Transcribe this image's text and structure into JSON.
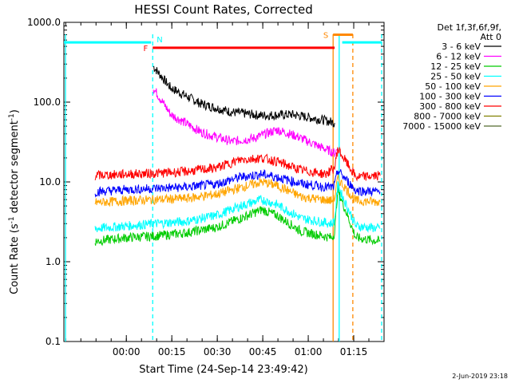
{
  "chart_data": {
    "type": "line",
    "title": "HESSI Count Rates, Corrected",
    "xlabel": "Start Time (24-Sep-14 23:49:42)",
    "ylabel_main": "Count Rate (s",
    "ylabel_sup1": "-1",
    "ylabel_mid": " detector segment",
    "ylabel_sup2": "-1",
    "ylabel_end": ")",
    "y_scale": "log",
    "ylim": [
      0.1,
      1000
    ],
    "xlim_minutes_from_start": [
      -10.3,
      95.3
    ],
    "x_ticks": [
      {
        "label": "00:00",
        "t": 10.3
      },
      {
        "label": "00:15",
        "t": 25.3
      },
      {
        "label": "00:30",
        "t": 40.3
      },
      {
        "label": "00:45",
        "t": 55.3
      },
      {
        "label": "01:00",
        "t": 70.3
      },
      {
        "label": "01:15",
        "t": 85.3
      }
    ],
    "y_ticks": [
      {
        "label": "1000.0",
        "v": 1000
      },
      {
        "label": "100.0",
        "v": 100
      },
      {
        "label": "10.0",
        "v": 10
      },
      {
        "label": "1.0",
        "v": 1
      },
      {
        "label": "0.1",
        "v": 0.1
      }
    ],
    "legend": {
      "header": [
        "Det 1f,3f,6f,9f,",
        "Att 0"
      ],
      "placement": "right"
    },
    "series": [
      {
        "name": "3 - 6 keV",
        "color": "#000000",
        "points": [
          [
            19.2,
            280
          ],
          [
            25,
            150
          ],
          [
            35,
            95
          ],
          [
            45,
            75
          ],
          [
            55,
            68
          ],
          [
            65,
            70
          ],
          [
            75,
            60
          ],
          [
            79,
            55
          ]
        ]
      },
      {
        "name": "6 - 12 keV",
        "color": "#ff00ff",
        "points": [
          [
            19.2,
            150
          ],
          [
            25,
            70
          ],
          [
            35,
            42
          ],
          [
            45,
            32
          ],
          [
            52,
            35
          ],
          [
            60,
            45
          ],
          [
            66,
            38
          ],
          [
            72,
            30
          ],
          [
            79,
            23
          ],
          [
            80,
            26
          ]
        ]
      },
      {
        "name": "12 - 25 keV",
        "color": "#00cc00",
        "points": [
          [
            0,
            1.8
          ],
          [
            10,
            2.0
          ],
          [
            20,
            2.1
          ],
          [
            30,
            2.3
          ],
          [
            40,
            2.7
          ],
          [
            48,
            3.5
          ],
          [
            55,
            4.5
          ],
          [
            60,
            3.8
          ],
          [
            68,
            2.4
          ],
          [
            78,
            2.0
          ],
          [
            79,
            2.3
          ],
          [
            80,
            8
          ],
          [
            86,
            2.0
          ],
          [
            94,
            1.8
          ]
        ]
      },
      {
        "name": "25 - 50 keV",
        "color": "#00ffff",
        "points": [
          [
            0,
            2.6
          ],
          [
            10,
            2.8
          ],
          [
            20,
            3.0
          ],
          [
            30,
            3.2
          ],
          [
            40,
            3.8
          ],
          [
            48,
            5.0
          ],
          [
            55,
            6.0
          ],
          [
            60,
            5.2
          ],
          [
            68,
            3.5
          ],
          [
            78,
            3.0
          ],
          [
            79,
            3.3
          ],
          [
            80,
            9
          ],
          [
            86,
            2.8
          ],
          [
            94,
            2.6
          ]
        ]
      },
      {
        "name": "50 - 100 keV",
        "color": "#ffa500",
        "points": [
          [
            0,
            5.5
          ],
          [
            10,
            5.8
          ],
          [
            20,
            6.0
          ],
          [
            30,
            6.2
          ],
          [
            40,
            7.0
          ],
          [
            48,
            8.5
          ],
          [
            55,
            10
          ],
          [
            60,
            9
          ],
          [
            68,
            6.5
          ],
          [
            78,
            5.8
          ],
          [
            79,
            6.2
          ],
          [
            80,
            11
          ],
          [
            86,
            5.8
          ],
          [
            94,
            5.6
          ]
        ]
      },
      {
        "name": "100 - 300 keV",
        "color": "#0000ff",
        "points": [
          [
            0,
            7.5
          ],
          [
            10,
            8.0
          ],
          [
            20,
            8.3
          ],
          [
            30,
            8.6
          ],
          [
            40,
            9.4
          ],
          [
            48,
            11.5
          ],
          [
            55,
            12.5
          ],
          [
            60,
            11.5
          ],
          [
            68,
            9.5
          ],
          [
            78,
            8.5
          ],
          [
            79,
            9
          ],
          [
            80,
            14
          ],
          [
            86,
            7.8
          ],
          [
            94,
            7.5
          ]
        ]
      },
      {
        "name": "300 - 800 keV",
        "color": "#ff0000",
        "points": [
          [
            0,
            12
          ],
          [
            10,
            12.5
          ],
          [
            20,
            12.8
          ],
          [
            30,
            13.5
          ],
          [
            40,
            15
          ],
          [
            48,
            19
          ],
          [
            55,
            20
          ],
          [
            60,
            18
          ],
          [
            68,
            14
          ],
          [
            76,
            12.5
          ],
          [
            79,
            15
          ],
          [
            80,
            26
          ],
          [
            86,
            11.5
          ],
          [
            94,
            12
          ]
        ]
      },
      {
        "name": "800 - 7000 keV",
        "color": "#808000",
        "points": []
      },
      {
        "name": "7000 - 15000 keV",
        "color": "#556b2f",
        "points": []
      }
    ],
    "intervals": [
      {
        "label": "F",
        "color": "#ff0000",
        "t0": 19.0,
        "t1": 79.0,
        "v": 480
      },
      {
        "label": "N",
        "color": "#00ffff",
        "t0": 19.0,
        "t1": 19.0,
        "v": 620
      },
      {
        "label": "S",
        "color": "#ff8800",
        "t0": 78.5,
        "t1": 85.0,
        "v": 700
      }
    ]
  },
  "footer_date": "2-Jun-2019 23:18"
}
